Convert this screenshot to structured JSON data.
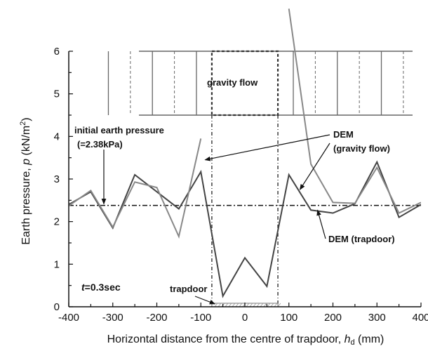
{
  "chart_data": {
    "type": "line",
    "xlabel_prefix": "Horizontal distance from the centre of trapdoor, ",
    "xlabel_symbol": "h",
    "xlabel_sub": "d",
    "xlabel_unit": " (mm)",
    "ylabel_prefix": "Earth pressure, ",
    "ylabel_symbol": "p",
    "ylabel_unit": " (kN/m",
    "ylabel_sup": "2",
    "ylabel_close": ")",
    "xlim": [
      -400,
      400
    ],
    "ylim": [
      0,
      6
    ],
    "x_ticks": [
      -400,
      -300,
      -200,
      -100,
      0,
      100,
      200,
      300,
      400
    ],
    "y_ticks": [
      0,
      1,
      2,
      3,
      4,
      5,
      6
    ],
    "series": [
      {
        "name": "DEM (trapdoor)",
        "color": "#444444",
        "x": [
          -400,
          -350,
          -300,
          -250,
          -200,
          -150,
          -100,
          -50,
          0,
          50,
          100,
          150,
          200,
          250,
          300,
          350,
          400
        ],
        "y": [
          2.4,
          2.7,
          1.85,
          3.1,
          2.7,
          2.3,
          3.17,
          0.25,
          1.15,
          0.48,
          3.1,
          2.27,
          2.2,
          2.42,
          3.4,
          2.1,
          2.4
        ]
      },
      {
        "name": "DEM (gravity flow)",
        "color": "#888888",
        "segments": [
          {
            "x": [
              -400,
              -350,
              -300,
              -250,
              -200,
              -150,
              -100
            ],
            "y": [
              2.37,
              2.73,
              1.87,
              2.93,
              2.8,
              1.65,
              3.95
            ]
          },
          {
            "x": [
              100,
              150,
              200,
              250,
              300,
              350,
              400
            ],
            "y": [
              7.0,
              3.35,
              2.45,
              2.43,
              3.27,
              2.2,
              2.45
            ]
          }
        ]
      }
    ],
    "reference_line": {
      "y": 2.38,
      "style": "dash-dot"
    },
    "trapdoor_range": [
      -75,
      75
    ],
    "annotations": {
      "initial": "initial earth pressure",
      "initial_value": "(=2.38kPa)",
      "gravity_label": "DEM",
      "gravity_sub": "(gravity flow)",
      "trapdoor_series_label": "DEM (trapdoor)",
      "trapdoor": "trapdoor",
      "time_symbol": "t",
      "time_value": "=0.3sec",
      "inset": "gravity flow"
    }
  }
}
